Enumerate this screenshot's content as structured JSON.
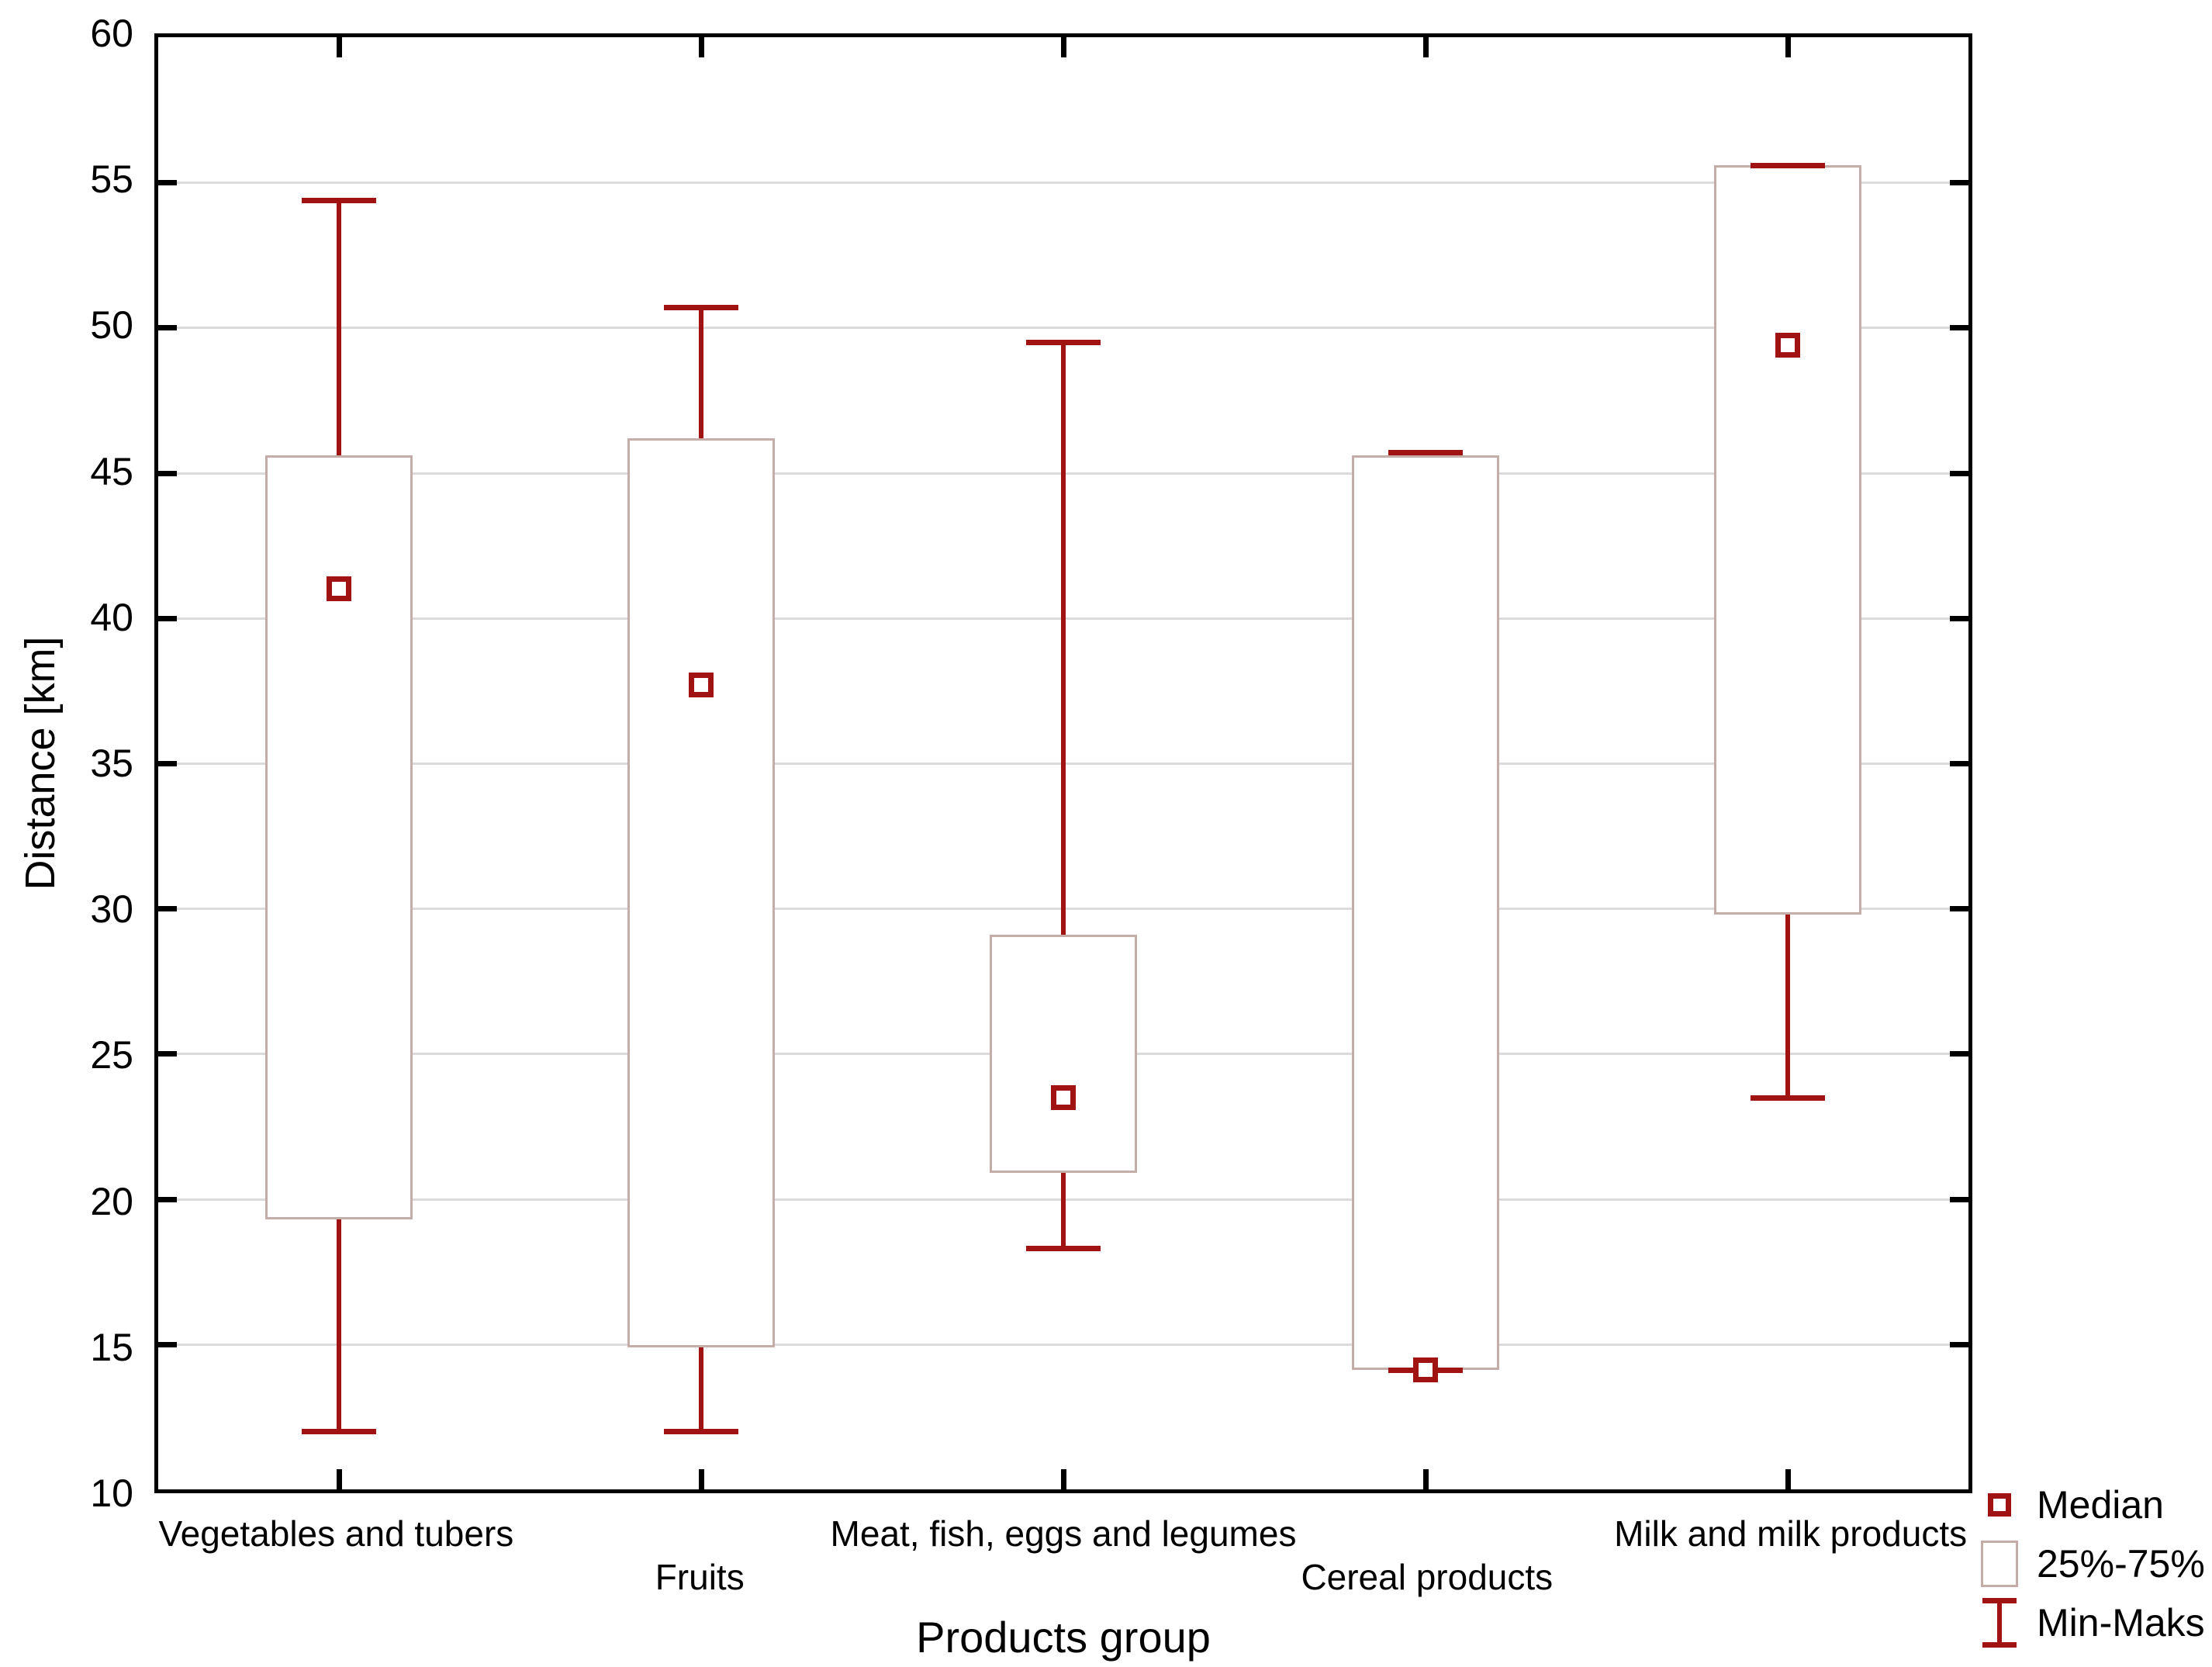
{
  "chart_data": {
    "type": "boxplot",
    "title": "",
    "xlabel": "Products group",
    "ylabel": "Distance [km]",
    "ylim": [
      10,
      60
    ],
    "yticks": [
      10,
      15,
      20,
      25,
      30,
      35,
      40,
      45,
      50,
      55,
      60
    ],
    "grid": "horizontal-only",
    "legend_position": "bottom-right",
    "categories": [
      "Vegetables and tubers",
      "Fruits",
      "Meat, fish, eggs and legumes",
      "Cereal products",
      "Milk and milk products"
    ],
    "category_label_rows": [
      1,
      2,
      1,
      2,
      1
    ],
    "series": [
      {
        "category": "Vegetables and tubers",
        "min": 12.0,
        "q1": 19.3,
        "median": 41.0,
        "q3": 45.6,
        "max": 54.4
      },
      {
        "category": "Fruits",
        "min": 12.0,
        "q1": 14.9,
        "median": 37.7,
        "q3": 46.2,
        "max": 50.7
      },
      {
        "category": "Meat, fish, eggs and legumes",
        "min": 18.3,
        "q1": 20.9,
        "median": 23.5,
        "q3": 29.1,
        "max": 49.5
      },
      {
        "category": "Cereal products",
        "min": 14.1,
        "q1": 14.1,
        "median": 14.1,
        "q3": 45.6,
        "max": 45.7
      },
      {
        "category": "Milk and milk products",
        "min": 23.5,
        "q1": 29.8,
        "median": 49.4,
        "q3": 55.6,
        "max": 55.6
      }
    ],
    "legend": [
      {
        "icon": "median-square-icon",
        "label": "Median"
      },
      {
        "icon": "iqr-box-icon",
        "label": "25%-75%"
      },
      {
        "icon": "min-max-whisker-icon",
        "label": "Min-Maks"
      }
    ],
    "colors": {
      "whisker_red": "#a11212",
      "median_red": "#a11212",
      "box_border": "#c4aca8",
      "gridline": "#dbdbdb",
      "axis": "#000000",
      "background": "#ffffff"
    }
  }
}
